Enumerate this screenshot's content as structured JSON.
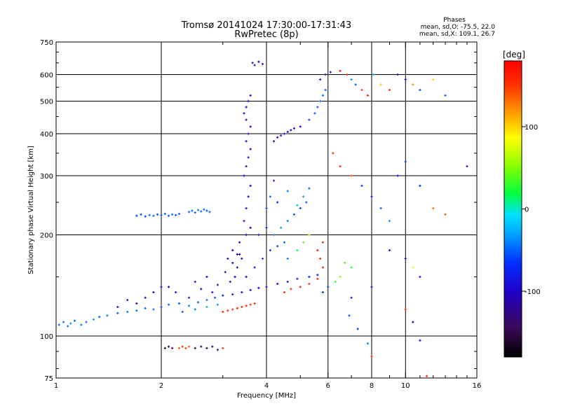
{
  "chart_data": {
    "type": "scatter",
    "title": "Tromsø 20141024 17:30:00-17:31:43",
    "subtitle": "RwPretec (8p)",
    "xlabel": "Frequency [MHz]",
    "ylabel": "Stationary phase Virtual Height [km]",
    "x_scale": "log",
    "y_scale": "log",
    "xlim": [
      1,
      16
    ],
    "ylim": [
      75,
      750
    ],
    "x_ticks": [
      1,
      2,
      4,
      6,
      8,
      10,
      16
    ],
    "x_ticks_minor": [
      3,
      5,
      7,
      9,
      11,
      12,
      13,
      14,
      15
    ],
    "y_ticks": [
      75,
      100,
      200,
      300,
      400,
      500,
      600,
      750
    ],
    "grid_x": [
      2,
      4,
      6,
      8,
      10
    ],
    "grid_y": [
      100,
      200,
      300,
      400,
      500,
      600
    ],
    "grid": true,
    "stats": {
      "header": "Phases",
      "line1": "mean, sd,O: -75.5, 22.0",
      "line2": "mean, sd,X: 109.1, 26.7"
    },
    "colorbar": {
      "label": "[deg]",
      "colormap": "rainbow (black-purple-blue-cyan-green-yellow-orange-red)",
      "range": [
        -180,
        180
      ],
      "ticks": [
        100,
        0,
        -100
      ]
    },
    "points": [
      [
        1.02,
        108,
        -50
      ],
      [
        1.05,
        110,
        -40
      ],
      [
        1.08,
        107,
        -45
      ],
      [
        1.1,
        109,
        -35
      ],
      [
        1.13,
        111,
        -50
      ],
      [
        1.18,
        108,
        -40
      ],
      [
        1.22,
        110,
        -45
      ],
      [
        1.28,
        112,
        -35
      ],
      [
        1.33,
        114,
        -50
      ],
      [
        1.4,
        115,
        -40
      ],
      [
        1.5,
        117,
        -55
      ],
      [
        1.6,
        118,
        -45
      ],
      [
        1.7,
        119,
        -50
      ],
      [
        1.8,
        121,
        -55
      ],
      [
        1.9,
        120,
        -45
      ],
      [
        2.0,
        122,
        -60
      ],
      [
        2.1,
        124,
        -50
      ],
      [
        2.25,
        125,
        -55
      ],
      [
        2.4,
        123,
        -40
      ],
      [
        2.55,
        126,
        -50
      ],
      [
        2.7,
        128,
        -45
      ],
      [
        2.85,
        130,
        -55
      ],
      [
        3.0,
        132,
        -75
      ],
      [
        3.2,
        133,
        -90
      ],
      [
        3.4,
        135,
        -100
      ],
      [
        3.6,
        137,
        -95
      ],
      [
        3.8,
        139,
        -100
      ],
      [
        4.0,
        140,
        -90
      ],
      [
        4.3,
        143,
        -95
      ],
      [
        4.6,
        145,
        -100
      ],
      [
        4.9,
        148,
        -85
      ],
      [
        5.3,
        150,
        -70
      ],
      [
        5.6,
        152,
        -80
      ],
      [
        1.7,
        228,
        -60
      ],
      [
        1.75,
        230,
        -55
      ],
      [
        1.8,
        227,
        -60
      ],
      [
        1.85,
        229,
        -50
      ],
      [
        1.9,
        228,
        -45
      ],
      [
        1.95,
        230,
        -55
      ],
      [
        2.0,
        229,
        -60
      ],
      [
        2.05,
        231,
        -50
      ],
      [
        2.1,
        228,
        -55
      ],
      [
        2.15,
        230,
        -45
      ],
      [
        2.2,
        229,
        -60
      ],
      [
        2.25,
        231,
        -50
      ],
      [
        2.4,
        234,
        -50
      ],
      [
        2.45,
        236,
        -45
      ],
      [
        2.5,
        233,
        -55
      ],
      [
        2.55,
        237,
        -40
      ],
      [
        2.6,
        235,
        -50
      ],
      [
        2.65,
        238,
        -45
      ],
      [
        2.7,
        236,
        -55
      ],
      [
        2.75,
        234,
        -50
      ],
      [
        2.05,
        92,
        -150
      ],
      [
        2.1,
        93,
        -145
      ],
      [
        2.15,
        92,
        -140
      ],
      [
        2.25,
        92,
        140
      ],
      [
        2.3,
        93,
        145
      ],
      [
        2.35,
        92,
        150
      ],
      [
        2.4,
        93,
        140
      ],
      [
        2.5,
        92,
        -140
      ],
      [
        2.6,
        93,
        -145
      ],
      [
        2.7,
        92,
        -150
      ],
      [
        2.8,
        93,
        -140
      ],
      [
        2.9,
        91,
        -135
      ],
      [
        3.0,
        92,
        150
      ],
      [
        3.0,
        118,
        160
      ],
      [
        3.1,
        119,
        155
      ],
      [
        3.2,
        120,
        150
      ],
      [
        3.3,
        121,
        165
      ],
      [
        3.4,
        122,
        160
      ],
      [
        3.5,
        123,
        155
      ],
      [
        3.6,
        124,
        150
      ],
      [
        3.7,
        125,
        160
      ],
      [
        4.5,
        135,
        155
      ],
      [
        4.7,
        138,
        150
      ],
      [
        5.0,
        140,
        160
      ],
      [
        5.3,
        143,
        150
      ],
      [
        5.6,
        148,
        165
      ],
      [
        5.8,
        160,
        170
      ],
      [
        5.7,
        170,
        165
      ],
      [
        5.6,
        180,
        160
      ],
      [
        5.8,
        190,
        155
      ],
      [
        3.2,
        180,
        -110
      ],
      [
        3.3,
        175,
        -105
      ],
      [
        3.4,
        170,
        -100
      ],
      [
        3.35,
        190,
        -90
      ],
      [
        3.5,
        200,
        -95
      ],
      [
        3.6,
        210,
        -100
      ],
      [
        3.45,
        220,
        -85
      ],
      [
        3.5,
        240,
        -90
      ],
      [
        3.55,
        260,
        -100
      ],
      [
        3.6,
        280,
        -95
      ],
      [
        3.45,
        300,
        -100
      ],
      [
        3.5,
        320,
        -110
      ],
      [
        3.55,
        340,
        -105
      ],
      [
        3.6,
        360,
        -100
      ],
      [
        3.5,
        380,
        -95
      ],
      [
        3.55,
        400,
        -110
      ],
      [
        3.6,
        420,
        -100
      ],
      [
        3.5,
        440,
        -105
      ],
      [
        3.45,
        460,
        -90
      ],
      [
        3.5,
        480,
        -100
      ],
      [
        3.55,
        500,
        -95
      ],
      [
        3.6,
        520,
        -90
      ],
      [
        3.65,
        650,
        -110
      ],
      [
        3.7,
        640,
        -100
      ],
      [
        3.8,
        655,
        -105
      ],
      [
        3.9,
        645,
        -95
      ],
      [
        3.5,
        150,
        -110
      ],
      [
        3.7,
        160,
        -95
      ],
      [
        3.9,
        170,
        -80
      ],
      [
        4.1,
        180,
        -70
      ],
      [
        4.3,
        185,
        -60
      ],
      [
        4.5,
        190,
        -50
      ],
      [
        4.2,
        200,
        -40
      ],
      [
        4.4,
        210,
        -30
      ],
      [
        4.6,
        220,
        -45
      ],
      [
        4.8,
        230,
        -55
      ],
      [
        5.0,
        240,
        -60
      ],
      [
        5.2,
        250,
        -50
      ],
      [
        3.8,
        200,
        -90
      ],
      [
        4.0,
        210,
        -75
      ],
      [
        4.6,
        170,
        -45
      ],
      [
        4.9,
        180,
        20
      ],
      [
        5.1,
        190,
        40
      ],
      [
        5.3,
        200,
        60
      ],
      [
        4.2,
        380,
        -100
      ],
      [
        4.3,
        390,
        -95
      ],
      [
        4.4,
        395,
        -90
      ],
      [
        4.5,
        400,
        -100
      ],
      [
        4.6,
        405,
        -85
      ],
      [
        4.7,
        410,
        -95
      ],
      [
        4.8,
        415,
        -100
      ],
      [
        5.0,
        420,
        -90
      ],
      [
        5.3,
        440,
        -60
      ],
      [
        5.5,
        460,
        -50
      ],
      [
        5.6,
        480,
        -55
      ],
      [
        5.7,
        500,
        -40
      ],
      [
        5.8,
        520,
        -45
      ],
      [
        5.9,
        540,
        -50
      ],
      [
        5.7,
        580,
        -100
      ],
      [
        5.9,
        600,
        -95
      ],
      [
        6.1,
        610,
        -110
      ],
      [
        6.5,
        615,
        170
      ],
      [
        6.8,
        600,
        160
      ],
      [
        7.0,
        580,
        -40
      ],
      [
        7.2,
        560,
        -50
      ],
      [
        7.5,
        540,
        150
      ],
      [
        7.8,
        520,
        160
      ],
      [
        8.1,
        600,
        -30
      ],
      [
        8.5,
        560,
        100
      ],
      [
        9.0,
        540,
        160
      ],
      [
        9.5,
        600,
        -100
      ],
      [
        10.0,
        580,
        -90
      ],
      [
        10.5,
        560,
        120
      ],
      [
        11.0,
        540,
        -60
      ],
      [
        12.0,
        580,
        100
      ],
      [
        13.0,
        520,
        -50
      ],
      [
        6.2,
        350,
        150
      ],
      [
        6.5,
        320,
        160
      ],
      [
        7.0,
        300,
        140
      ],
      [
        7.5,
        280,
        -60
      ],
      [
        8.0,
        260,
        -90
      ],
      [
        8.5,
        240,
        -50
      ],
      [
        9.0,
        220,
        -40
      ],
      [
        9.5,
        300,
        -100
      ],
      [
        10.0,
        330,
        -60
      ],
      [
        11.0,
        280,
        -70
      ],
      [
        12.0,
        240,
        130
      ],
      [
        13.0,
        230,
        140
      ],
      [
        15.0,
        320,
        -100
      ],
      [
        9.0,
        180,
        -120
      ],
      [
        10.0,
        170,
        -100
      ],
      [
        10.5,
        160,
        80
      ],
      [
        11.0,
        150,
        -80
      ],
      [
        8.0,
        140,
        -100
      ],
      [
        7.0,
        130,
        -90
      ],
      [
        10.0,
        120,
        150
      ],
      [
        10.5,
        110,
        -110
      ],
      [
        11.0,
        97,
        -80
      ],
      [
        8.0,
        87,
        160
      ],
      [
        11.5,
        76,
        160
      ],
      [
        5.8,
        135,
        -70
      ],
      [
        6.0,
        140,
        -60
      ],
      [
        6.3,
        145,
        30
      ],
      [
        6.5,
        150,
        50
      ],
      [
        6.7,
        165,
        40
      ],
      [
        7.0,
        160,
        30
      ],
      [
        6.9,
        115,
        -55
      ],
      [
        7.3,
        105,
        -60
      ],
      [
        7.8,
        95,
        -40
      ],
      [
        2.1,
        140,
        -110
      ],
      [
        2.2,
        135,
        -100
      ],
      [
        2.5,
        145,
        -90
      ],
      [
        2.7,
        150,
        -100
      ],
      [
        2.9,
        142,
        -110
      ],
      [
        2.4,
        130,
        -95
      ],
      [
        2.6,
        138,
        -105
      ],
      [
        2.8,
        135,
        -85
      ],
      [
        1.7,
        125,
        -100
      ],
      [
        1.8,
        130,
        -110
      ],
      [
        1.9,
        135,
        -120
      ],
      [
        2.0,
        140,
        -100
      ],
      [
        1.6,
        128,
        -90
      ],
      [
        1.5,
        122,
        -105
      ],
      [
        2.3,
        118,
        -50
      ],
      [
        2.5,
        120,
        -40
      ],
      [
        2.7,
        122,
        -30
      ],
      [
        2.9,
        124,
        -35
      ],
      [
        3.1,
        170,
        -100
      ],
      [
        3.2,
        165,
        -110
      ],
      [
        3.3,
        160,
        -120
      ],
      [
        3.25,
        150,
        -100
      ],
      [
        3.15,
        145,
        -95
      ],
      [
        3.05,
        155,
        -130
      ],
      [
        3.35,
        175,
        -115
      ],
      [
        4.0,
        240,
        -60
      ],
      [
        4.1,
        260,
        -50
      ],
      [
        4.3,
        250,
        -70
      ],
      [
        4.6,
        270,
        -40
      ],
      [
        4.9,
        245,
        -20
      ],
      [
        5.1,
        260,
        -30
      ],
      [
        5.3,
        275,
        -50
      ],
      [
        4.2,
        290,
        -80
      ]
    ]
  }
}
